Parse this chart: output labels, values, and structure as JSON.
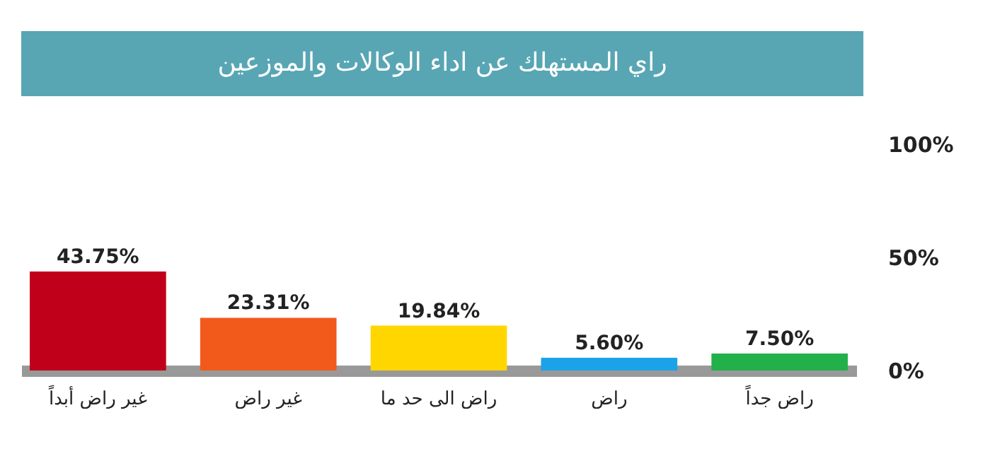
{
  "chart_data": {
    "type": "bar",
    "title": "راي المستهلك عن اداء الوكالات والموزعين",
    "categories": [
      "غير راض أبداً",
      "غير راض",
      "راض الى حد ما",
      "راض",
      "راض جداً"
    ],
    "values": [
      43.75,
      23.31,
      19.84,
      5.6,
      7.5
    ],
    "value_labels": [
      "43.75%",
      "23.31%",
      "19.84%",
      "5.60%",
      "7.50%"
    ],
    "colors": [
      "#c0001a",
      "#f25a1c",
      "#ffd600",
      "#1aa3e8",
      "#22b04a"
    ],
    "ylim": [
      0,
      100
    ],
    "yticks": [
      {
        "value": 0,
        "label": "0%"
      },
      {
        "value": 50,
        "label": "50%"
      },
      {
        "value": 100,
        "label": "100%"
      }
    ]
  }
}
